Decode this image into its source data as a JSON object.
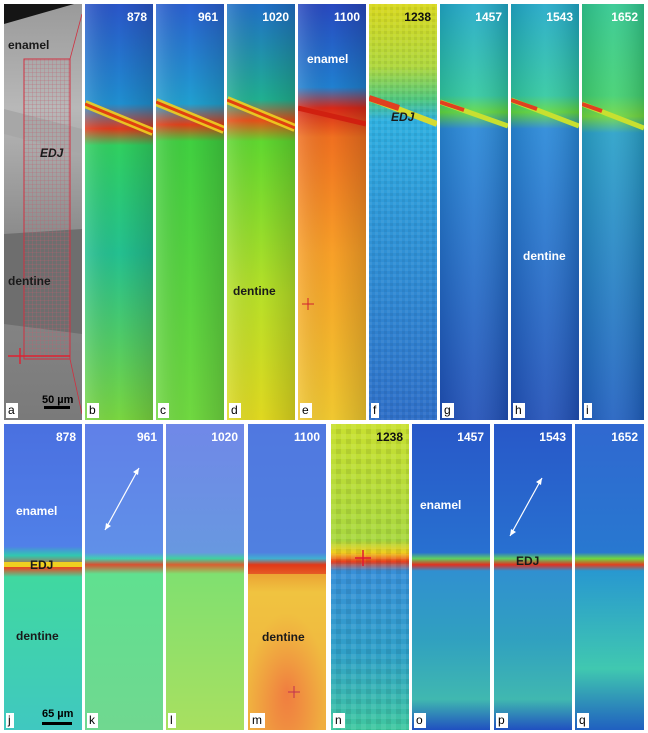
{
  "figure": {
    "top_row": {
      "photo": {
        "letter": "a",
        "labels": {
          "enamel": "enamel",
          "edj": "EDJ",
          "dentine": "dentine"
        },
        "scale_label": "50 µm"
      },
      "maps": [
        {
          "letter": "b",
          "wavenumber": "878"
        },
        {
          "letter": "c",
          "wavenumber": "961"
        },
        {
          "letter": "d",
          "wavenumber": "1020",
          "label": "dentine"
        },
        {
          "letter": "e",
          "wavenumber": "1100",
          "label": "enamel"
        },
        {
          "letter": "f",
          "wavenumber": "1238",
          "label": "EDJ"
        },
        {
          "letter": "g",
          "wavenumber": "1457"
        },
        {
          "letter": "h",
          "wavenumber": "1543",
          "label": "dentine"
        },
        {
          "letter": "i",
          "wavenumber": "1652"
        }
      ]
    },
    "bottom_row": {
      "scale_label": "65 µm",
      "maps": [
        {
          "letter": "j",
          "wavenumber": "878",
          "labels": {
            "enamel": "enamel",
            "edj": "EDJ",
            "dentine": "dentine"
          }
        },
        {
          "letter": "k",
          "wavenumber": "961"
        },
        {
          "letter": "l",
          "wavenumber": "1020"
        },
        {
          "letter": "m",
          "wavenumber": "1100",
          "label": "dentine"
        },
        {
          "letter": "n",
          "wavenumber": "1238"
        },
        {
          "letter": "o",
          "wavenumber": "1457",
          "label": "enamel"
        },
        {
          "letter": "p",
          "wavenumber": "1543",
          "label": "EDJ"
        },
        {
          "letter": "q",
          "wavenumber": "1652"
        }
      ]
    }
  }
}
